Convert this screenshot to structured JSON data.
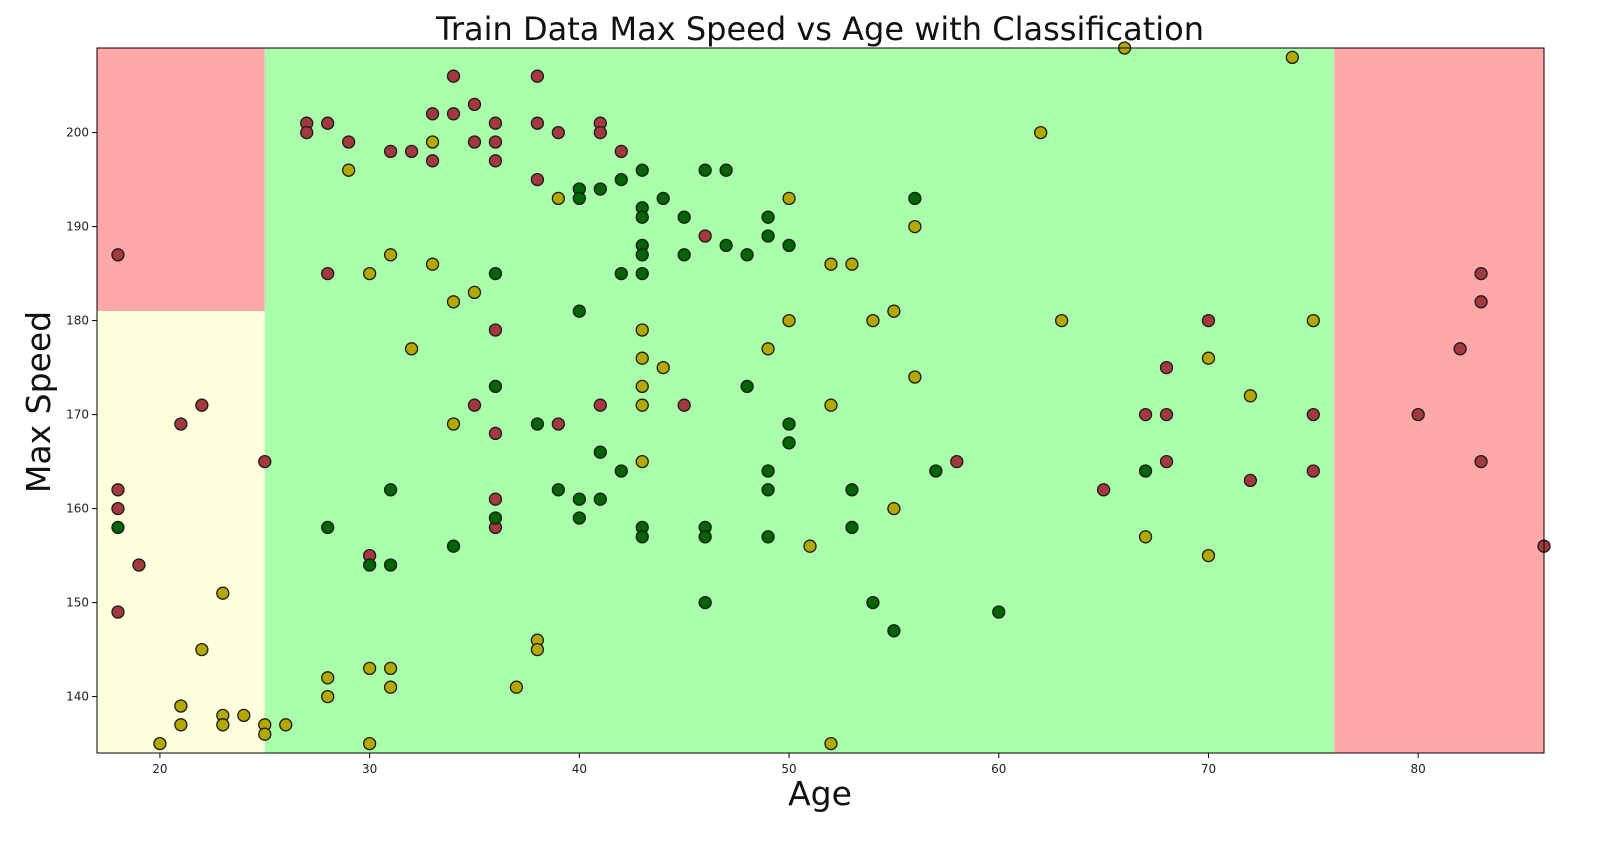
{
  "chart_data": {
    "type": "scatter",
    "title": "Train Data Max Speed vs Age with Classification",
    "xlabel": "Age",
    "ylabel": "Max Speed",
    "xlim": [
      17,
      86
    ],
    "ylim": [
      134,
      209
    ],
    "xticks": [
      20,
      30,
      40,
      50,
      60,
      70,
      80
    ],
    "yticks": [
      140,
      150,
      160,
      170,
      180,
      190,
      200
    ],
    "grid": false,
    "legend": null,
    "colors": {
      "region_red": "#ffa8a8",
      "region_green": "#aaffaa",
      "region_yellow": "#ffffdd",
      "point_red": "#a3383f",
      "point_green": "#006400",
      "point_yellow": "#b3a800",
      "edge": "#1a1a1a"
    },
    "regions": [
      {
        "class": "red",
        "x": [
          17,
          25
        ],
        "y": [
          181,
          209
        ]
      },
      {
        "class": "yellow",
        "x": [
          17,
          25
        ],
        "y": [
          134,
          181
        ]
      },
      {
        "class": "green",
        "x": [
          25,
          76
        ],
        "y": [
          134,
          209
        ]
      },
      {
        "class": "red",
        "x": [
          76,
          86
        ],
        "y": [
          134,
          209
        ]
      }
    ],
    "series": [
      {
        "class": "red",
        "points": [
          [
            18,
            187
          ],
          [
            18,
            162
          ],
          [
            18,
            160
          ],
          [
            18,
            149
          ],
          [
            19,
            154
          ],
          [
            21,
            169
          ],
          [
            22,
            171
          ],
          [
            25,
            165
          ],
          [
            27,
            201
          ],
          [
            27,
            200
          ],
          [
            28,
            201
          ],
          [
            28,
            185
          ],
          [
            29,
            199
          ],
          [
            30,
            155
          ],
          [
            31,
            198
          ],
          [
            32,
            198
          ],
          [
            33,
            202
          ],
          [
            33,
            197
          ],
          [
            34,
            206
          ],
          [
            34,
            202
          ],
          [
            35,
            203
          ],
          [
            35,
            199
          ],
          [
            35,
            171
          ],
          [
            36,
            201
          ],
          [
            36,
            199
          ],
          [
            36,
            197
          ],
          [
            36,
            179
          ],
          [
            36,
            168
          ],
          [
            36,
            161
          ],
          [
            36,
            158
          ],
          [
            38,
            206
          ],
          [
            38,
            201
          ],
          [
            38,
            195
          ],
          [
            39,
            200
          ],
          [
            39,
            169
          ],
          [
            41,
            201
          ],
          [
            41,
            200
          ],
          [
            41,
            171
          ],
          [
            42,
            198
          ],
          [
            45,
            171
          ],
          [
            46,
            189
          ],
          [
            58,
            165
          ],
          [
            65,
            162
          ],
          [
            67,
            170
          ],
          [
            68,
            175
          ],
          [
            68,
            170
          ],
          [
            68,
            165
          ],
          [
            70,
            180
          ],
          [
            72,
            163
          ],
          [
            75,
            170
          ],
          [
            75,
            164
          ],
          [
            80,
            170
          ],
          [
            82,
            177
          ],
          [
            83,
            185
          ],
          [
            83,
            182
          ],
          [
            83,
            165
          ],
          [
            86,
            156
          ]
        ]
      },
      {
        "class": "green",
        "points": [
          [
            18,
            158
          ],
          [
            28,
            158
          ],
          [
            30,
            154
          ],
          [
            31,
            162
          ],
          [
            31,
            154
          ],
          [
            34,
            156
          ],
          [
            36,
            185
          ],
          [
            36,
            173
          ],
          [
            36,
            159
          ],
          [
            38,
            169
          ],
          [
            39,
            162
          ],
          [
            40,
            194
          ],
          [
            40,
            193
          ],
          [
            40,
            181
          ],
          [
            40,
            161
          ],
          [
            40,
            159
          ],
          [
            41,
            194
          ],
          [
            41,
            166
          ],
          [
            41,
            161
          ],
          [
            42,
            195
          ],
          [
            42,
            185
          ],
          [
            42,
            164
          ],
          [
            43,
            196
          ],
          [
            43,
            192
          ],
          [
            43,
            191
          ],
          [
            43,
            188
          ],
          [
            43,
            187
          ],
          [
            43,
            185
          ],
          [
            43,
            158
          ],
          [
            43,
            157
          ],
          [
            44,
            193
          ],
          [
            45,
            191
          ],
          [
            45,
            187
          ],
          [
            46,
            196
          ],
          [
            46,
            158
          ],
          [
            46,
            157
          ],
          [
            46,
            150
          ],
          [
            47,
            196
          ],
          [
            47,
            188
          ],
          [
            48,
            187
          ],
          [
            48,
            173
          ],
          [
            49,
            191
          ],
          [
            49,
            189
          ],
          [
            49,
            164
          ],
          [
            49,
            162
          ],
          [
            49,
            157
          ],
          [
            50,
            188
          ],
          [
            50,
            169
          ],
          [
            50,
            167
          ],
          [
            53,
            162
          ],
          [
            53,
            158
          ],
          [
            54,
            150
          ],
          [
            55,
            147
          ],
          [
            56,
            193
          ],
          [
            57,
            164
          ],
          [
            60,
            149
          ],
          [
            67,
            164
          ]
        ]
      },
      {
        "class": "yellow",
        "points": [
          [
            20,
            135
          ],
          [
            21,
            139
          ],
          [
            21,
            137
          ],
          [
            22,
            145
          ],
          [
            23,
            151
          ],
          [
            23,
            138
          ],
          [
            23,
            137
          ],
          [
            24,
            138
          ],
          [
            25,
            137
          ],
          [
            25,
            136
          ],
          [
            26,
            137
          ],
          [
            28,
            142
          ],
          [
            28,
            140
          ],
          [
            29,
            196
          ],
          [
            30,
            185
          ],
          [
            30,
            143
          ],
          [
            30,
            135
          ],
          [
            31,
            187
          ],
          [
            31,
            143
          ],
          [
            31,
            141
          ],
          [
            32,
            177
          ],
          [
            33,
            199
          ],
          [
            33,
            186
          ],
          [
            34,
            182
          ],
          [
            34,
            169
          ],
          [
            35,
            183
          ],
          [
            37,
            141
          ],
          [
            38,
            146
          ],
          [
            38,
            145
          ],
          [
            39,
            193
          ],
          [
            43,
            179
          ],
          [
            43,
            176
          ],
          [
            43,
            173
          ],
          [
            43,
            171
          ],
          [
            43,
            165
          ],
          [
            44,
            175
          ],
          [
            49,
            177
          ],
          [
            50,
            193
          ],
          [
            50,
            180
          ],
          [
            51,
            156
          ],
          [
            52,
            186
          ],
          [
            52,
            171
          ],
          [
            52,
            135
          ],
          [
            53,
            186
          ],
          [
            54,
            180
          ],
          [
            55,
            181
          ],
          [
            55,
            160
          ],
          [
            56,
            190
          ],
          [
            56,
            174
          ],
          [
            62,
            200
          ],
          [
            63,
            180
          ],
          [
            66,
            209
          ],
          [
            67,
            157
          ],
          [
            70,
            176
          ],
          [
            70,
            155
          ],
          [
            72,
            172
          ],
          [
            74,
            208
          ],
          [
            75,
            180
          ]
        ]
      }
    ]
  }
}
